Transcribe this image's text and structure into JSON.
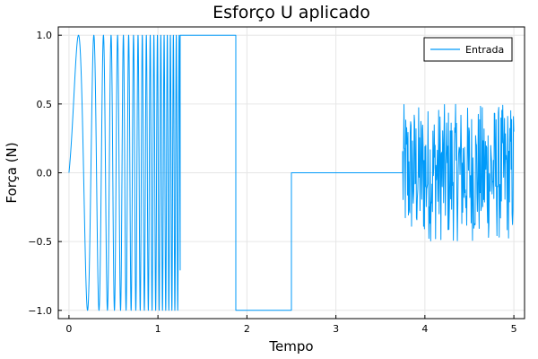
{
  "chart_data": {
    "type": "line",
    "title": "Esforço U aplicado",
    "xlabel": "Tempo",
    "ylabel": "Força (N)",
    "xlim": [
      -0.12,
      5.12
    ],
    "ylim": [
      -1.06,
      1.06
    ],
    "xticks": [
      0,
      1,
      2,
      3,
      4,
      5
    ],
    "xtick_labels": [
      "0",
      "1",
      "2",
      "3",
      "4",
      "5"
    ],
    "yticks": [
      -1.0,
      -0.5,
      0.0,
      0.5,
      1.0
    ],
    "ytick_labels": [
      "−1.0",
      "−0.5",
      "0.0",
      "0.5",
      "1.0"
    ],
    "grid": true,
    "legend_position": "top-right",
    "series": [
      {
        "name": "Entrada",
        "color": "#009af9",
        "segments": [
          {
            "kind": "chirp",
            "x_start": 0.0,
            "x_end": 1.25,
            "amplitude": 1.0,
            "f0": 1.0,
            "f1": 32.0
          },
          {
            "kind": "constant",
            "x_start": 1.25,
            "x_end": 1.875,
            "value": 1.0
          },
          {
            "kind": "constant",
            "x_start": 1.875,
            "x_end": 2.5,
            "value": -1.0
          },
          {
            "kind": "constant",
            "x_start": 2.5,
            "x_end": 3.75,
            "value": 0.0
          },
          {
            "kind": "noise",
            "x_start": 3.75,
            "x_end": 5.0,
            "min": -0.5,
            "max": 0.5,
            "step": 0.005
          }
        ]
      }
    ]
  }
}
